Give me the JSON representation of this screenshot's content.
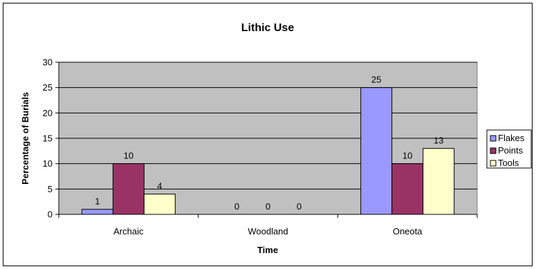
{
  "chart_data": {
    "type": "bar",
    "title": "Lithic Use",
    "xlabel": "Time",
    "ylabel": "Percentage of Burials",
    "categories": [
      "Archaic",
      "Woodland",
      "Oneota"
    ],
    "series": [
      {
        "name": "Flakes",
        "values": [
          1,
          0,
          25
        ],
        "color": "#9999ff"
      },
      {
        "name": "Points",
        "values": [
          10,
          0,
          10
        ],
        "color": "#993366"
      },
      {
        "name": "Tools",
        "values": [
          4,
          0,
          13
        ],
        "color": "#ffffcc"
      }
    ],
    "ylim": [
      0,
      30
    ],
    "yticks": [
      0,
      5,
      10,
      15,
      20,
      25,
      30
    ],
    "grid": true,
    "legend": "right",
    "plot_background": "#c0c0c0",
    "gridline_color": "#000000"
  }
}
